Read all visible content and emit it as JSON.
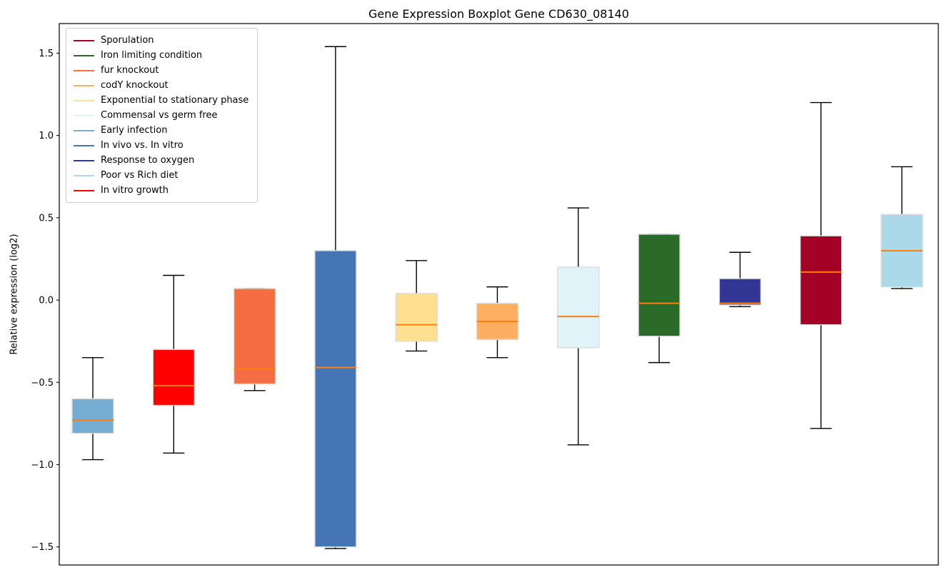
{
  "chart_data": {
    "type": "boxplot",
    "title": "Gene Expression Boxplot Gene CD630_08140",
    "ylabel": "Relative expression (log2)",
    "xlabel": "",
    "ylim": [
      -1.61,
      1.68
    ],
    "y_ticks": [
      1.5,
      1.0,
      0.5,
      0.0,
      -0.5,
      -1.0,
      -1.5
    ],
    "grid": false,
    "legend_position": "upper-left",
    "median_color": "#FF7F0E",
    "whisker_color": "#000000",
    "box_edge_color": "#DCDCDC",
    "legend": [
      {
        "label": "Sporulation",
        "color": "#A50026"
      },
      {
        "label": "Iron limiting condition",
        "color": "#2A6B2A"
      },
      {
        "label": "fur knockout",
        "color": "#F46D43"
      },
      {
        "label": "codY knockout",
        "color": "#FDAE61"
      },
      {
        "label": "Exponential to stationary phase",
        "color": "#FEE090"
      },
      {
        "label": "Commensal vs germ free",
        "color": "#E0F3F8"
      },
      {
        "label": "Early infection",
        "color": "#74ADD1"
      },
      {
        "label": "In vivo vs. In vitro",
        "color": "#4575B4"
      },
      {
        "label": "Response to oxygen",
        "color": "#313695"
      },
      {
        "label": "Poor vs Rich diet",
        "color": "#ABD9E9"
      },
      {
        "label": "In vitro growth",
        "color": "#FF0000"
      }
    ],
    "boxes": [
      {
        "label": "Early infection",
        "color": "#74ADD1",
        "whisker_low": -0.97,
        "q1": -0.81,
        "median": -0.73,
        "q3": -0.6,
        "whisker_high": -0.35
      },
      {
        "label": "In vitro growth",
        "color": "#FF0000",
        "whisker_low": -0.93,
        "q1": -0.64,
        "median": -0.52,
        "q3": -0.3,
        "whisker_high": 0.15
      },
      {
        "label": "fur knockout",
        "color": "#F46D43",
        "whisker_low": -0.55,
        "q1": -0.51,
        "median": -0.42,
        "q3": 0.07,
        "whisker_high": 0.07
      },
      {
        "label": "In vivo vs. In vitro",
        "color": "#4575B4",
        "whisker_low": -1.51,
        "q1": -1.5,
        "median": -0.41,
        "q3": 0.3,
        "whisker_high": 1.54
      },
      {
        "label": "Exponential to stationary phase",
        "color": "#FEE090",
        "whisker_low": -0.31,
        "q1": -0.25,
        "median": -0.15,
        "q3": 0.04,
        "whisker_high": 0.24
      },
      {
        "label": "codY knockout",
        "color": "#FDAE61",
        "whisker_low": -0.35,
        "q1": -0.24,
        "median": -0.13,
        "q3": -0.02,
        "whisker_high": 0.08
      },
      {
        "label": "Commensal vs germ free",
        "color": "#E0F3F8",
        "whisker_low": -0.88,
        "q1": -0.29,
        "median": -0.1,
        "q3": 0.2,
        "whisker_high": 0.56
      },
      {
        "label": "Iron limiting condition",
        "color": "#2A6B2A",
        "whisker_low": -0.38,
        "q1": -0.22,
        "median": -0.02,
        "q3": 0.4,
        "whisker_high": 0.4
      },
      {
        "label": "Response to oxygen",
        "color": "#313695",
        "whisker_low": -0.04,
        "q1": -0.03,
        "median": -0.02,
        "q3": 0.13,
        "whisker_high": 0.29
      },
      {
        "label": "Sporulation",
        "color": "#A50026",
        "whisker_low": -0.78,
        "q1": -0.15,
        "median": 0.17,
        "q3": 0.39,
        "whisker_high": 1.2
      },
      {
        "label": "Poor vs Rich diet",
        "color": "#ABD9E9",
        "whisker_low": 0.07,
        "q1": 0.08,
        "median": 0.3,
        "q3": 0.52,
        "whisker_high": 0.81
      }
    ]
  }
}
